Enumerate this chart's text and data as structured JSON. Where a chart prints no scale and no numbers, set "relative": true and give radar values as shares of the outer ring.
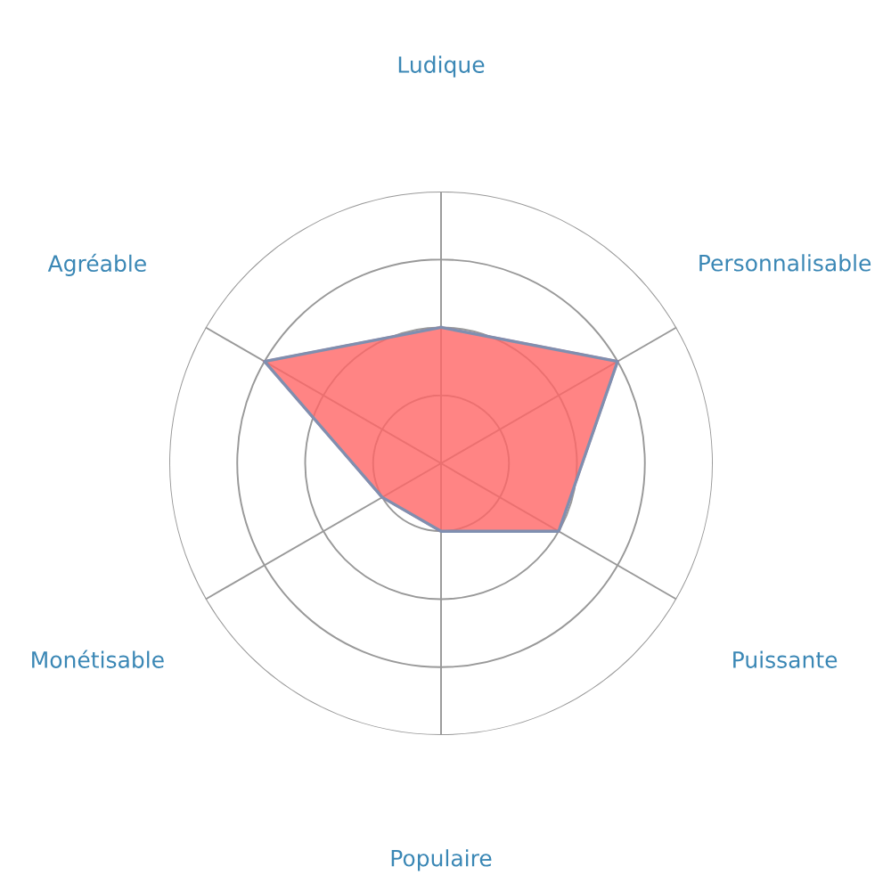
{
  "chart_data": {
    "type": "radar",
    "relative": true,
    "categories": [
      "Ludique",
      "Personnalisable",
      "Puissante",
      "Populaire",
      "Monétisable",
      "Agréable"
    ],
    "series": [
      {
        "color": "#ff6666",
        "values": [
          0.5,
          0.75,
          0.5,
          0.25,
          0.25,
          0.75
        ]
      }
    ],
    "grid": true,
    "legend": false
  }
}
